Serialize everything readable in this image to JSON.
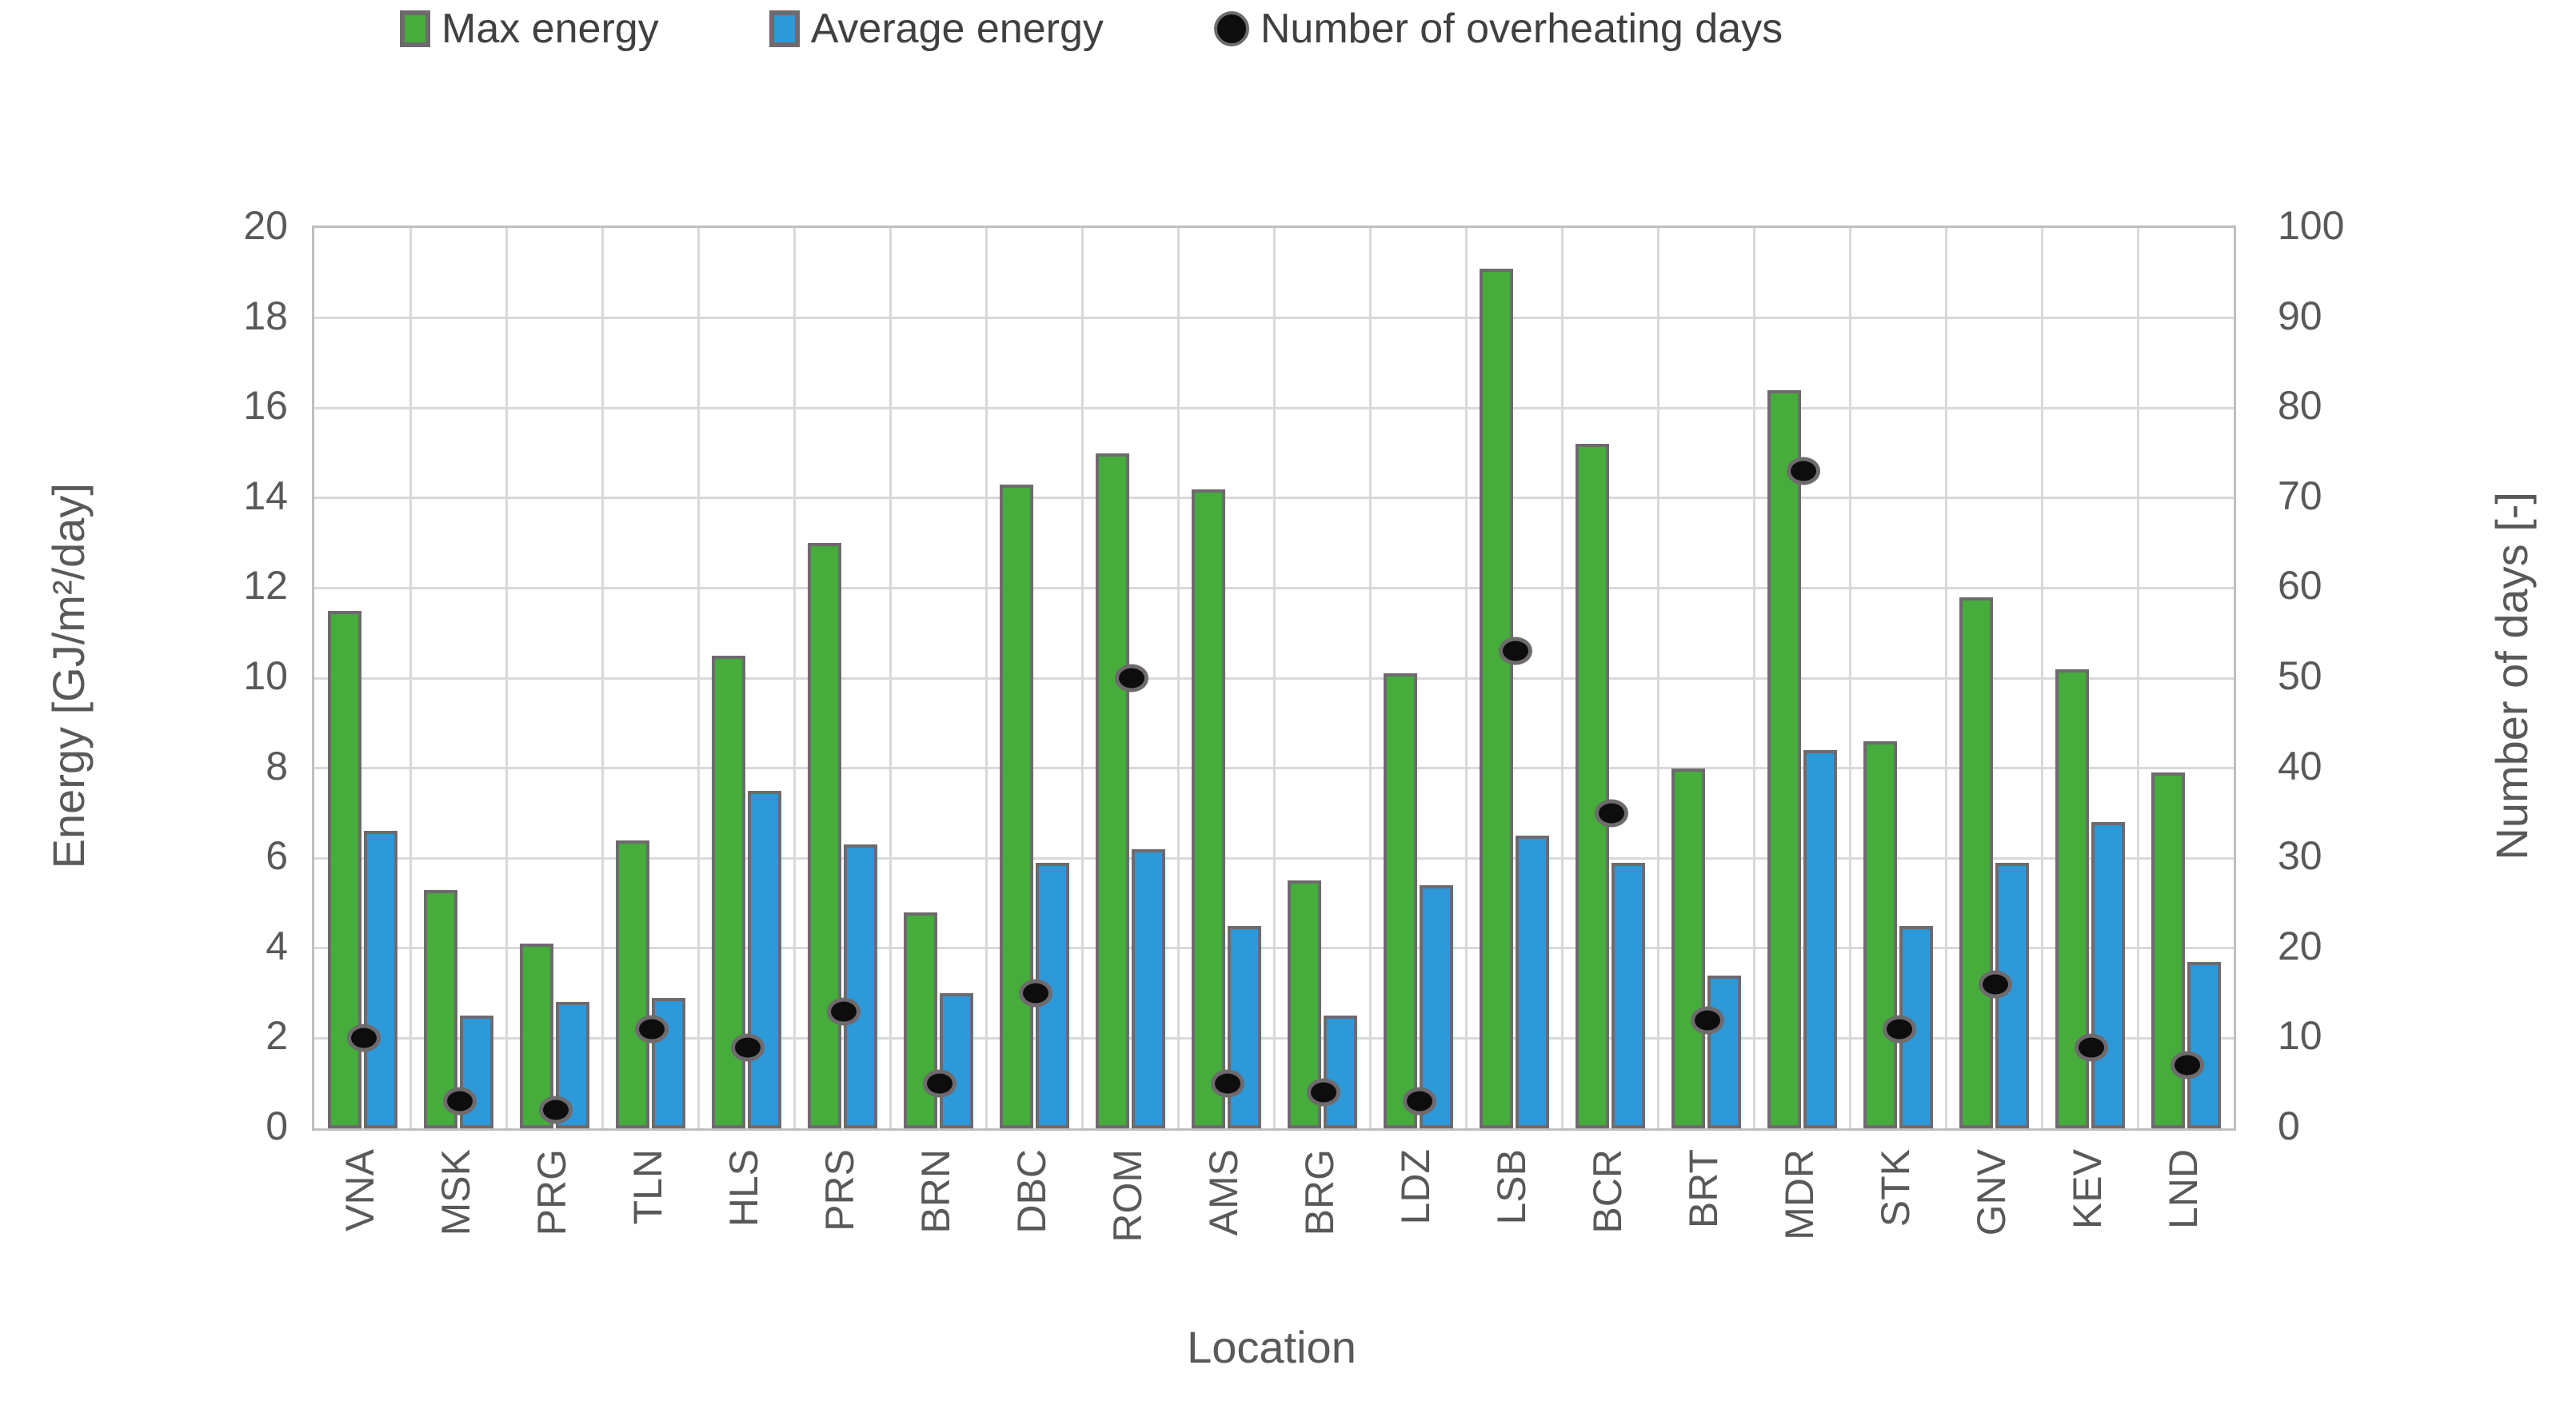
{
  "legend": {
    "items": [
      {
        "label": "Max energy",
        "swatch": "green-square"
      },
      {
        "label": "Average energy",
        "swatch": "blue-square"
      },
      {
        "label": "Number of overheating days",
        "swatch": "black-dot"
      }
    ]
  },
  "colors": {
    "max_energy": "#46AC3C",
    "average_energy": "#2D99D8",
    "marker": "#0D0D0D",
    "bar_border": "#6E6A6E",
    "gridline": "#D9D9D9",
    "plot_border": "#BFBFBF",
    "axis_text": "#595959",
    "legend_text": "#404040"
  },
  "chart_data": {
    "type": "bar",
    "title": "",
    "xlabel": "Location",
    "ylabel_left": "Energy [GJ/m²/day]",
    "ylabel_right": "Number of days [-]",
    "grid": true,
    "legend_position": "top",
    "categories": [
      "VNA",
      "MSK",
      "PRG",
      "TLN",
      "HLS",
      "PRS",
      "BRN",
      "DBC",
      "ROM",
      "AMS",
      "BRG",
      "LDZ",
      "LSB",
      "BCR",
      "BRT",
      "MDR",
      "STK",
      "GNV",
      "KEV",
      "LND"
    ],
    "y_left": {
      "min": 0,
      "max": 20,
      "step": 2,
      "ticks": [
        0,
        2,
        4,
        6,
        8,
        10,
        12,
        14,
        16,
        18,
        20
      ]
    },
    "y_right": {
      "min": 0,
      "max": 100,
      "step": 10,
      "ticks": [
        0,
        10,
        20,
        30,
        40,
        50,
        60,
        70,
        80,
        90,
        100
      ]
    },
    "series": [
      {
        "name": "Max energy",
        "type": "bar",
        "axis": "left",
        "color_key": "max_energy",
        "values": [
          11.5,
          5.3,
          4.1,
          6.4,
          10.5,
          13.0,
          4.8,
          14.3,
          15.0,
          14.2,
          5.5,
          10.1,
          19.1,
          15.2,
          8.0,
          16.4,
          8.6,
          11.8,
          10.2,
          7.9
        ]
      },
      {
        "name": "Average energy",
        "type": "bar",
        "axis": "left",
        "color_key": "average_energy",
        "values": [
          6.6,
          2.5,
          2.8,
          2.9,
          7.5,
          6.3,
          3.0,
          5.9,
          6.2,
          4.5,
          2.5,
          5.4,
          6.5,
          5.9,
          3.4,
          8.4,
          4.5,
          5.9,
          6.8,
          3.7
        ]
      },
      {
        "name": "Number of overheating days",
        "type": "scatter",
        "axis": "right",
        "color_key": "marker",
        "values": [
          10,
          3,
          2,
          11,
          9,
          13,
          5,
          15,
          50,
          5,
          4,
          3,
          53,
          35,
          12,
          73,
          11,
          16,
          9,
          7
        ]
      }
    ]
  }
}
